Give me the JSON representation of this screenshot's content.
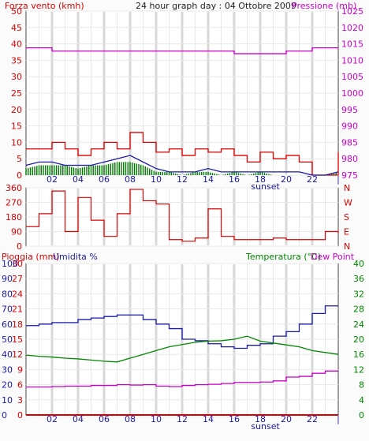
{
  "header": {
    "title": "24 hour graph day : 04 Ottobre 2009",
    "left_label": "Forza vento (kmh)",
    "right_label": "Pressione (mb)"
  },
  "bottom_header": {
    "rain_label": "Pioggia (mm)",
    "humidity_label": "Umidita %",
    "temp_label": "Temperatura (°C)",
    "dew_label": "Dew Point"
  },
  "x_ticks": [
    "02",
    "04",
    "06",
    "08",
    "10",
    "12",
    "14",
    "16",
    "18",
    "20",
    "22",
    "|"
  ],
  "sunset_label": "sunset",
  "colors": {
    "wind": "#dd0000",
    "gust": "#dd0000",
    "avg_wind": "#007700",
    "wind_line": "#1a1aa8",
    "pressure": "#cc00cc",
    "direction": "#dd0000",
    "humidity": "#1a1aa8",
    "temperature": "#008800",
    "dew_point": "#cc00cc",
    "rain": "#dd0000",
    "grid_major": "#d8d8d8",
    "grid_minor": "#e8e8e8"
  },
  "chart_data": [
    {
      "type": "line",
      "title": "24 hour graph day : 04 Ottobre 2009",
      "ylabel": "Forza vento (kmh)",
      "ylabel_right": "Pressione (mb)",
      "ylim": [
        0,
        50
      ],
      "yticks": [
        0,
        5,
        10,
        15,
        20,
        25,
        30,
        35,
        40,
        45,
        50
      ],
      "ylim_right": [
        975,
        1025
      ],
      "yticks_right": [
        975,
        980,
        985,
        990,
        995,
        1000,
        1005,
        1010,
        1015,
        1020,
        1025
      ],
      "x_hours": [
        0,
        1,
        2,
        3,
        4,
        5,
        6,
        7,
        8,
        9,
        10,
        11,
        12,
        13,
        14,
        15,
        16,
        17,
        18,
        19,
        20,
        21,
        22,
        23,
        24
      ],
      "series": [
        {
          "values": [
            8,
            8,
            10,
            8,
            6,
            8,
            10,
            8,
            13,
            10,
            7,
            8,
            6,
            8,
            7,
            8,
            6,
            4,
            7,
            5,
            6,
            4,
            0,
            0,
            7
          ]
        },
        {
          "values": [
            3,
            4,
            4,
            3,
            3,
            3,
            4,
            5,
            6,
            4,
            2,
            1,
            1,
            1,
            2,
            1,
            1,
            1,
            1,
            1,
            1,
            1,
            0,
            0,
            1
          ]
        },
        {
          "values": [
            2,
            3,
            3,
            3,
            2,
            3,
            3,
            4,
            4,
            3,
            1,
            1,
            0,
            1,
            1,
            0,
            1,
            0,
            1,
            0,
            0,
            0,
            0,
            0,
            1
          ]
        },
        {
          "values": [
            1013.8,
            1013.8,
            1012.8,
            1012.8,
            1012.8,
            1012.8,
            1012.8,
            1012.8,
            1012.8,
            1012.8,
            1012.8,
            1012.8,
            1012.8,
            1012.8,
            1012.8,
            1012.8,
            1012.0,
            1012.0,
            1012.0,
            1012.0,
            1012.8,
            1012.8,
            1013.8,
            1013.8,
            1013.8
          ]
        }
      ]
    },
    {
      "type": "line",
      "yticks": [
        360,
        270,
        180,
        90,
        0
      ],
      "ylim": [
        0,
        360
      ],
      "ylabels_right": [
        "N",
        "W",
        "S",
        "E",
        "N"
      ],
      "x_hours": [
        0,
        1,
        2,
        3,
        4,
        5,
        6,
        7,
        8,
        9,
        10,
        11,
        12,
        13,
        14,
        15,
        16,
        17,
        18,
        19,
        20,
        21,
        22,
        23,
        24
      ],
      "series": [
        {
          "values": [
            120,
            200,
            340,
            90,
            300,
            160,
            60,
            200,
            350,
            280,
            260,
            40,
            30,
            50,
            230,
            60,
            40,
            40,
            40,
            50,
            40,
            40,
            40,
            90,
            80
          ]
        }
      ]
    },
    {
      "type": "line",
      "ylabel": "Pioggia (mm)",
      "ylim": [
        0,
        30
      ],
      "yticks": [
        0,
        3,
        6,
        9,
        12,
        15,
        18,
        21,
        24,
        27,
        30
      ],
      "humidity_ylim": [
        0,
        100
      ],
      "humidity_yticks": [
        0,
        10,
        20,
        30,
        40,
        50,
        60,
        70,
        80,
        90,
        100
      ],
      "temp_ylim": [
        0,
        40
      ],
      "temp_yticks": [
        0,
        4,
        8,
        12,
        16,
        20,
        24,
        28,
        32,
        36,
        40
      ],
      "x_hours": [
        0,
        1,
        2,
        3,
        4,
        5,
        6,
        7,
        8,
        9,
        10,
        11,
        12,
        13,
        14,
        15,
        16,
        17,
        18,
        19,
        20,
        21,
        22,
        23,
        24
      ],
      "series": [
        {
          "values": [
            59,
            60,
            61,
            61,
            63,
            64,
            65,
            66,
            66,
            63,
            60,
            57,
            50,
            49,
            47,
            45,
            44,
            46,
            47,
            52,
            55,
            60,
            67,
            72,
            72
          ]
        },
        {
          "values": [
            15.8,
            15.5,
            15.3,
            15.0,
            14.8,
            14.5,
            14.2,
            14.0,
            15.0,
            16.0,
            17.0,
            18.0,
            18.6,
            19.2,
            19.5,
            19.6,
            20.0,
            20.8,
            19.5,
            19.0,
            18.5,
            18.0,
            17.0,
            16.5,
            16.0
          ]
        },
        {
          "values": [
            7.4,
            7.4,
            7.5,
            7.6,
            7.6,
            7.8,
            7.8,
            8.0,
            7.9,
            8.0,
            7.6,
            7.5,
            7.8,
            8.0,
            8.1,
            8.3,
            8.6,
            8.6,
            8.7,
            9.0,
            10.0,
            10.2,
            11.0,
            11.6,
            11.6
          ]
        },
        {
          "values": [
            0,
            0,
            0,
            0,
            0,
            0,
            0,
            0,
            0,
            0,
            0,
            0,
            0,
            0,
            0,
            0,
            0,
            0,
            0,
            0,
            0,
            0,
            0,
            0,
            0
          ]
        }
      ]
    }
  ]
}
